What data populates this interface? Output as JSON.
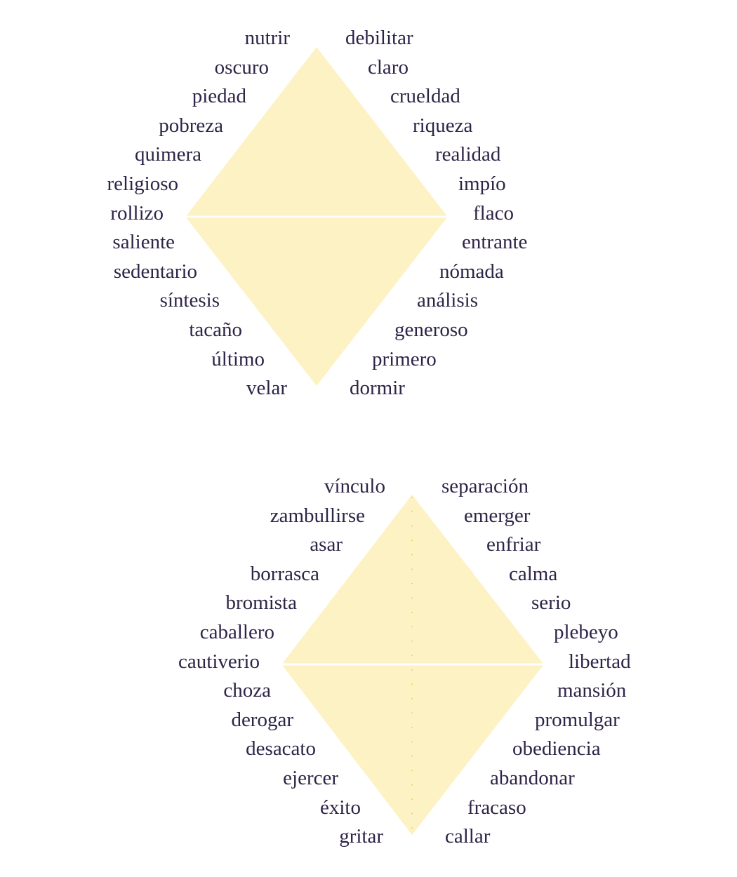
{
  "colors": {
    "shape_fill": "#fdf2c4",
    "text": "#2e2447",
    "divider": "#ffffff",
    "dots": "#e8d66a"
  },
  "diagrams": [
    {
      "left_words": [
        "nutrir",
        "oscuro",
        "piedad",
        "pobreza",
        "quimera",
        "religioso",
        "rollizo",
        "saliente",
        "sedentario",
        "síntesis",
        "tacaño",
        "último",
        "velar"
      ],
      "right_words": [
        "debilitar",
        "claro",
        "crueldad",
        "riqueza",
        "realidad",
        "impío",
        "flaco",
        "entrante",
        "nómada",
        "análisis",
        "generoso",
        "primero",
        "dormir"
      ]
    },
    {
      "left_words": [
        "vínculo",
        "zambullirse",
        "asar",
        "borrasca",
        "bromista",
        "caballero",
        "cautiverio",
        "choza",
        "derogar",
        "desacato",
        "ejercer",
        "éxito",
        "gritar"
      ],
      "right_words": [
        "separación",
        "emerger",
        "enfriar",
        "calma",
        "serio",
        "plebeyo",
        "libertad",
        "mansión",
        "promulgar",
        "obediencia",
        "abandonar",
        "fracaso",
        "callar"
      ]
    }
  ]
}
